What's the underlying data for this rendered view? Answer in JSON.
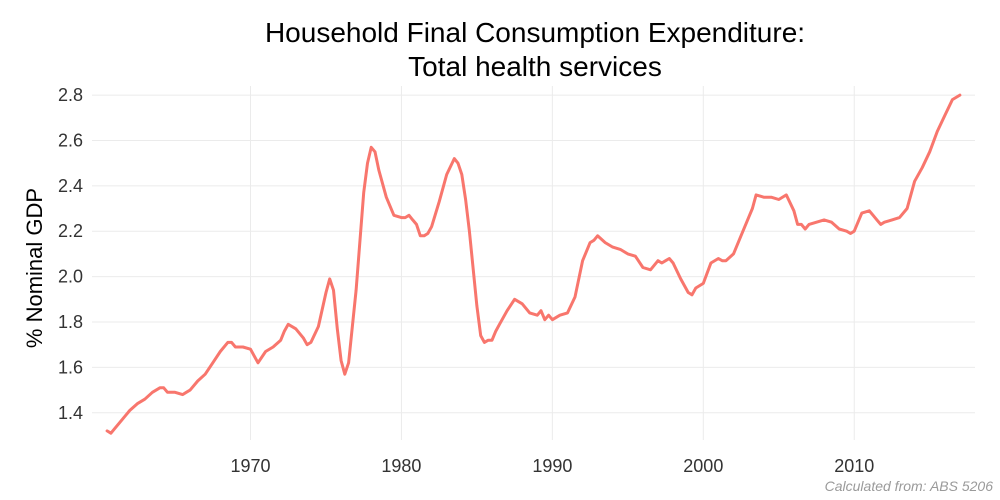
{
  "chart_data": {
    "type": "line",
    "title": [
      "Household Final Consumption Expenditure:",
      "Total health services"
    ],
    "xlabel": "",
    "ylabel": "% Nominal GDP",
    "caption": "Calculated from: ABS 5206",
    "xlim": [
      1959.5,
      2018
    ],
    "ylim": [
      1.28,
      2.84
    ],
    "x_ticks": [
      1970,
      1980,
      1990,
      2000,
      2010
    ],
    "y_ticks": [
      1.4,
      1.6,
      1.8,
      2.0,
      2.2,
      2.4,
      2.6,
      2.8
    ],
    "y_tick_labels": [
      "1.4",
      "1.6",
      "1.8",
      "2.0",
      "2.2",
      "2.4",
      "2.6",
      "2.8"
    ],
    "grid": true,
    "colors": {
      "line": "#F8766D",
      "grid": "#ebebeb",
      "text": "#333333"
    },
    "series": [
      {
        "x": [
          1960.5,
          1960.75,
          1961.0,
          1961.5,
          1962.0,
          1962.5,
          1963.0,
          1963.5,
          1964.0,
          1964.25,
          1964.5,
          1965.0,
          1965.5,
          1965.75,
          1966.0,
          1966.5,
          1967.0,
          1967.5,
          1968.0,
          1968.5,
          1968.75,
          1969.0,
          1969.5,
          1970.0,
          1970.5,
          1971.0,
          1971.5,
          1972.0,
          1972.25,
          1972.5,
          1973.0,
          1973.5,
          1973.75,
          1974.0,
          1974.5,
          1975.0,
          1975.25,
          1975.5,
          1975.75,
          1976.0,
          1976.25,
          1976.5,
          1977.0,
          1977.5,
          1977.75,
          1978.0,
          1978.25,
          1978.5,
          1979.0,
          1979.5,
          1980.0,
          1980.25,
          1980.5,
          1980.75,
          1981.0,
          1981.25,
          1981.5,
          1981.75,
          1982.0,
          1982.5,
          1983.0,
          1983.5,
          1983.75,
          1984.0,
          1984.25,
          1984.5,
          1985.0,
          1985.25,
          1985.5,
          1985.75,
          1986.0,
          1986.25,
          1986.5,
          1987.0,
          1987.5,
          1988.0,
          1988.5,
          1989.0,
          1989.25,
          1989.5,
          1989.75,
          1990.0,
          1990.5,
          1991.0,
          1991.5,
          1992.0,
          1992.5,
          1992.75,
          1993.0,
          1993.5,
          1994.0,
          1994.5,
          1995.0,
          1995.5,
          1996.0,
          1996.5,
          1997.0,
          1997.25,
          1997.5,
          1997.75,
          1998.0,
          1998.5,
          1999.0,
          1999.25,
          1999.5,
          2000.0,
          2000.5,
          2001.0,
          2001.25,
          2001.5,
          2002.0,
          2002.5,
          2003.0,
          2003.25,
          2003.5,
          2004.0,
          2004.5,
          2005.0,
          2005.5,
          2006.0,
          2006.25,
          2006.5,
          2006.75,
          2007.0,
          2007.5,
          2008.0,
          2008.5,
          2009.0,
          2009.5,
          2009.75,
          2010.0,
          2010.5,
          2011.0,
          2011.25,
          2011.5,
          2011.75,
          2012.0,
          2012.5,
          2013.0,
          2013.5,
          2014.0,
          2014.5,
          2015.0,
          2015.5,
          2016.0,
          2016.5,
          2017.0
        ],
        "values": [
          1.32,
          1.31,
          1.33,
          1.37,
          1.41,
          1.44,
          1.46,
          1.49,
          1.51,
          1.51,
          1.49,
          1.49,
          1.48,
          1.49,
          1.5,
          1.54,
          1.57,
          1.62,
          1.67,
          1.71,
          1.71,
          1.69,
          1.69,
          1.68,
          1.62,
          1.67,
          1.69,
          1.72,
          1.76,
          1.79,
          1.77,
          1.73,
          1.7,
          1.71,
          1.78,
          1.93,
          1.99,
          1.94,
          1.77,
          1.63,
          1.57,
          1.62,
          1.94,
          2.37,
          2.5,
          2.57,
          2.55,
          2.47,
          2.35,
          2.27,
          2.26,
          2.26,
          2.27,
          2.25,
          2.23,
          2.18,
          2.18,
          2.19,
          2.22,
          2.33,
          2.45,
          2.52,
          2.5,
          2.45,
          2.34,
          2.2,
          1.87,
          1.74,
          1.71,
          1.72,
          1.72,
          1.76,
          1.79,
          1.85,
          1.9,
          1.88,
          1.84,
          1.83,
          1.85,
          1.81,
          1.83,
          1.81,
          1.83,
          1.84,
          1.91,
          2.07,
          2.15,
          2.16,
          2.18,
          2.15,
          2.13,
          2.12,
          2.1,
          2.09,
          2.04,
          2.03,
          2.07,
          2.06,
          2.07,
          2.08,
          2.06,
          1.99,
          1.93,
          1.92,
          1.95,
          1.97,
          2.06,
          2.08,
          2.07,
          2.07,
          2.1,
          2.18,
          2.26,
          2.3,
          2.36,
          2.35,
          2.35,
          2.34,
          2.36,
          2.29,
          2.23,
          2.23,
          2.21,
          2.23,
          2.24,
          2.25,
          2.24,
          2.21,
          2.2,
          2.19,
          2.2,
          2.28,
          2.29,
          2.27,
          2.25,
          2.23,
          2.24,
          2.25,
          2.26,
          2.3,
          2.42,
          2.48,
          2.55,
          2.64,
          2.71,
          2.78,
          2.8
        ]
      }
    ]
  }
}
